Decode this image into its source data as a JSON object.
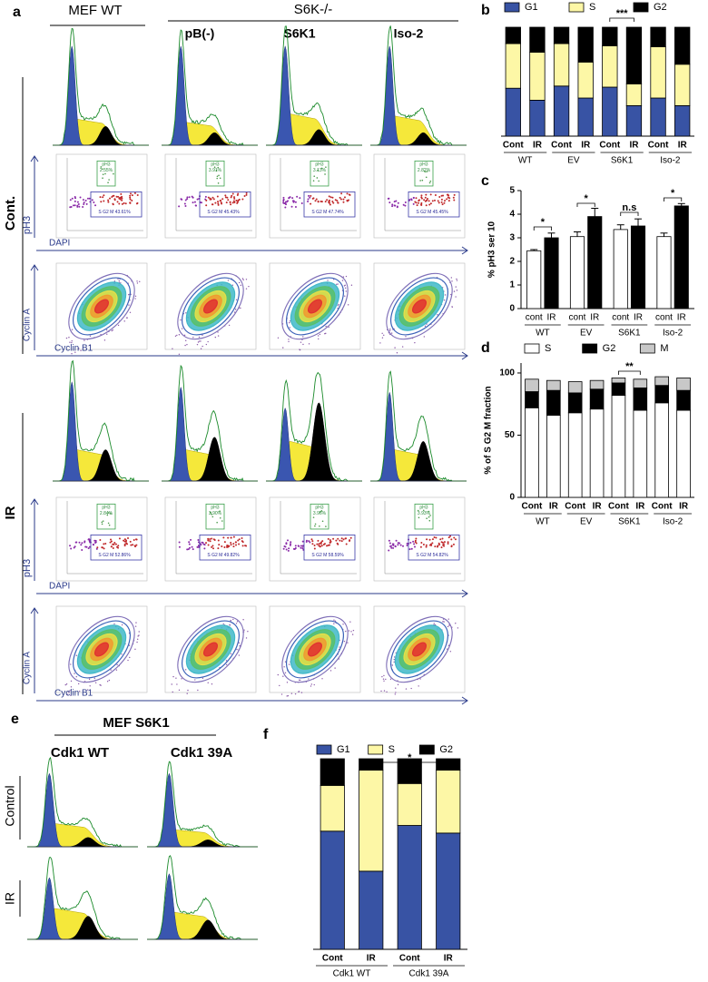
{
  "panel_a": {
    "label": "a",
    "header_wt": "MEF WT",
    "header_ko": "S6K-/-",
    "columns": [
      "pB(-)",
      "S6K1",
      "Iso-2"
    ],
    "rows": [
      {
        "label": "Cont.",
        "gates": [
          {
            "ph3": "pH3",
            "ph3_pct": "2.55%",
            "sg2m": "S G2 M 43.61%"
          },
          {
            "ph3": "pH3",
            "ph3_pct": "3.91%",
            "sg2m": "S G2 M 45.43%"
          },
          {
            "ph3": "pH3",
            "ph3_pct": "3.13%",
            "sg2m": "S G2 M 47.74%"
          },
          {
            "ph3": "pH3",
            "ph3_pct": "2.82%",
            "sg2m": "S G2 M 45.45%"
          }
        ]
      },
      {
        "label": "IR",
        "gates": [
          {
            "ph3": "pH3",
            "ph3_pct": "2.84%",
            "sg2m": "S G2 M 52.86%"
          },
          {
            "ph3": "pH3",
            "ph3_pct": "3.90%",
            "sg2m": "S G2 M 49.82%"
          },
          {
            "ph3": "pH3",
            "ph3_pct": "3.96%",
            "sg2m": "S G2 M 58.59%"
          },
          {
            "ph3": "pH3",
            "ph3_pct": "3.93%",
            "sg2m": "S G2 M 54.82%"
          }
        ]
      }
    ],
    "axis_labels": {
      "ph3": "pH3",
      "dapi": "DAPI",
      "cyclin_a": "Cyclin A",
      "cyclin_b1": "Cyclin B1"
    }
  },
  "panel_e": {
    "label": "e",
    "title": "MEF S6K1",
    "columns": [
      "Cdk1 WT",
      "Cdk1 39A"
    ],
    "rows": [
      "Control",
      "IR"
    ]
  },
  "chart_data": [
    {
      "type": "stacked-bar",
      "panel_label": "b",
      "categories": [
        "Cont",
        "IR",
        "Cont",
        "IR",
        "Cont",
        "IR",
        "Cont",
        "IR"
      ],
      "groups": [
        "WT",
        "EV",
        "S6K1",
        "Iso-2"
      ],
      "series": [
        {
          "name": "G1",
          "color": "#3853a4",
          "values": [
            44,
            33,
            46,
            35,
            45,
            28,
            35,
            28
          ]
        },
        {
          "name": "S",
          "color": "#fdf7a6",
          "values": [
            41,
            44,
            39,
            33,
            38,
            20,
            47,
            38
          ]
        },
        {
          "name": "G2",
          "color": "#000000",
          "values": [
            15,
            23,
            15,
            32,
            17,
            52,
            18,
            34
          ]
        }
      ],
      "annotations": [
        "***"
      ]
    },
    {
      "type": "grouped-bar",
      "panel_label": "c",
      "categories": [
        "WT",
        "EV",
        "S6K1",
        "Iso-2"
      ],
      "series": [
        {
          "name": "cont",
          "color": "#ffffff",
          "values": [
            2.45,
            3.05,
            3.35,
            3.05
          ],
          "errors": [
            0.05,
            0.2,
            0.2,
            0.15
          ]
        },
        {
          "name": "IR",
          "color": "#000000",
          "values": [
            3,
            3.9,
            3.5,
            4.35
          ],
          "errors": [
            0.2,
            0.35,
            0.3,
            0.1
          ]
        }
      ],
      "y_label": "% pH3 ser 10",
      "ylim": [
        0,
        5
      ],
      "yticks": [
        0,
        1,
        2,
        3,
        4,
        5
      ],
      "annotations": [
        "*",
        "*",
        "n.s",
        "*"
      ]
    },
    {
      "type": "stacked-bar",
      "panel_label": "d",
      "categories": [
        "Cont",
        "IR",
        "Cont",
        "IR",
        "Cont",
        "IR",
        "Cont",
        "IR"
      ],
      "groups": [
        "WT",
        "EV",
        "S6K1",
        "Iso-2"
      ],
      "series": [
        {
          "name": "S",
          "color": "#ffffff",
          "values": [
            72,
            66,
            68,
            71,
            82,
            70,
            76,
            70
          ]
        },
        {
          "name": "G2",
          "color": "#000000",
          "values": [
            13,
            20,
            16,
            16,
            10,
            18,
            14,
            16
          ]
        },
        {
          "name": "M",
          "color": "#c8c8c8",
          "values": [
            10,
            8,
            9,
            7,
            4,
            7,
            7,
            10
          ]
        }
      ],
      "y_label": "% of S G2 M fraction",
      "ylim": [
        0,
        108
      ],
      "yticks": [
        0,
        50,
        100
      ],
      "annotations": [
        "**"
      ]
    },
    {
      "type": "stacked-bar",
      "panel_label": "f",
      "categories": [
        "Cont",
        "IR",
        "Cont",
        "IR"
      ],
      "groups": [
        "Cdk1 WT",
        "Cdk1 39A"
      ],
      "series": [
        {
          "name": "G1",
          "color": "#3853a4",
          "values": [
            62,
            41,
            65,
            61
          ]
        },
        {
          "name": "S",
          "color": "#fdf7a6",
          "values": [
            24,
            53,
            22,
            33
          ]
        },
        {
          "name": "G2",
          "color": "#000000",
          "values": [
            14,
            6,
            13,
            6
          ]
        }
      ],
      "annotations": [
        "*"
      ]
    }
  ]
}
